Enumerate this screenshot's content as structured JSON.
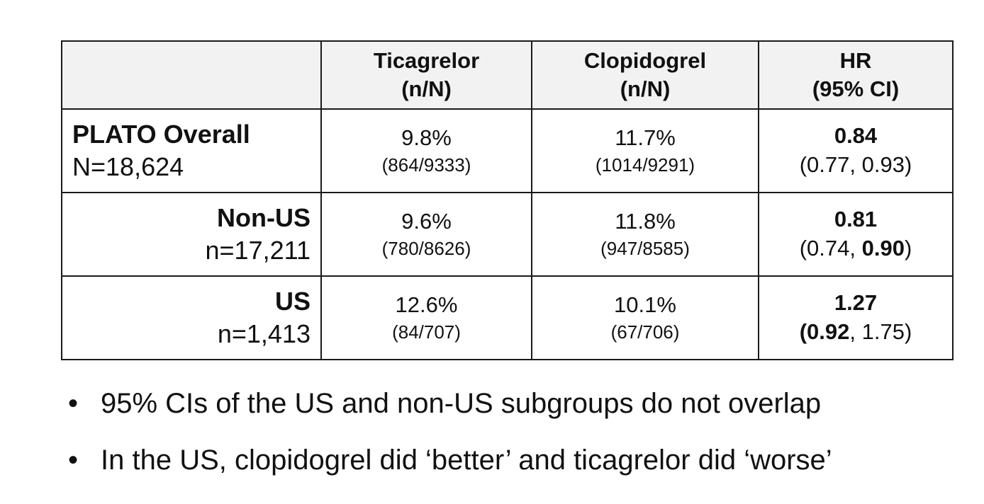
{
  "table": {
    "headers": [
      {
        "line1": "",
        "line2": ""
      },
      {
        "line1": "Ticagrelor",
        "line2": "(n/N)"
      },
      {
        "line1": "Clopidogrel",
        "line2": "(n/N)"
      },
      {
        "line1": "HR",
        "line2": "(95% CI)"
      }
    ],
    "rows": [
      {
        "group": "PLATO Overall",
        "n": "N=18,624",
        "ticagrelor": {
          "pct": "9.8%",
          "frac": "(864/9333)"
        },
        "clopidogrel": {
          "pct": "11.7%",
          "frac": "(1014/9291)"
        },
        "hr": {
          "value": "0.84",
          "ci_open": "(",
          "ci_low": "0.77",
          "ci_sep": ", ",
          "ci_high": "0.93",
          "ci_close": ")"
        }
      },
      {
        "group": "Non-US",
        "n": "n=17,211",
        "ticagrelor": {
          "pct": "9.6%",
          "frac": "(780/8626)"
        },
        "clopidogrel": {
          "pct": "11.8%",
          "frac": "(947/8585)"
        },
        "hr": {
          "value": "0.81",
          "ci_open": "(",
          "ci_low": "0.74",
          "ci_sep": ", ",
          "ci_high": "0.90",
          "ci_close": ")"
        }
      },
      {
        "group": "US",
        "n": "n=1,413",
        "ticagrelor": {
          "pct": "12.6%",
          "frac": "(84/707)"
        },
        "clopidogrel": {
          "pct": "10.1%",
          "frac": "(67/706)"
        },
        "hr": {
          "value": "1.27",
          "ci_open": "(",
          "ci_low": "0.92",
          "ci_sep": ", ",
          "ci_high": "1.75",
          "ci_close": ")"
        }
      }
    ]
  },
  "bullets": {
    "marker": "•",
    "items": [
      "95% CIs of the US and non-US subgroups do not overlap",
      "In the US, clopidogrel did ‘better’ and ticagrelor did ‘worse’"
    ]
  }
}
